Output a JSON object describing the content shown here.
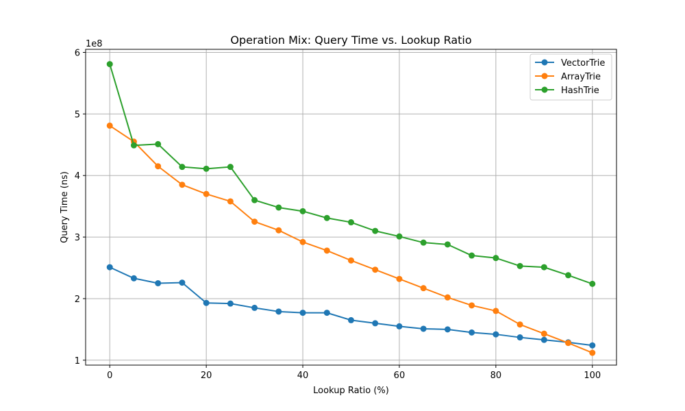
{
  "chart_data": {
    "type": "line",
    "title": "Operation Mix: Query Time vs. Lookup Ratio",
    "xlabel": "Lookup Ratio (%)",
    "ylabel": "Query Time (ns)",
    "y_offset_label": "1e8",
    "y_scale": 100000000,
    "xlim": [
      -5,
      105
    ],
    "ylim": [
      92000000,
      605000000
    ],
    "x_ticks": [
      0,
      20,
      40,
      60,
      80,
      100
    ],
    "y_ticks": [
      100000000,
      200000000,
      300000000,
      400000000,
      500000000,
      600000000
    ],
    "x_tick_labels": [
      "0",
      "20",
      "40",
      "60",
      "80",
      "100"
    ],
    "y_tick_labels": [
      "1",
      "2",
      "3",
      "4",
      "5",
      "6"
    ],
    "grid": true,
    "legend_position": "top-right",
    "x": [
      0,
      5,
      10,
      15,
      20,
      25,
      30,
      35,
      40,
      45,
      50,
      55,
      60,
      65,
      70,
      75,
      80,
      85,
      90,
      95,
      100
    ],
    "series": [
      {
        "name": "VectorTrie",
        "color": "#1f77b4",
        "values": [
          251000000,
          233000000,
          225000000,
          226000000,
          193000000,
          192000000,
          185000000,
          179000000,
          177000000,
          177000000,
          165000000,
          160000000,
          155000000,
          151000000,
          150000000,
          145000000,
          142000000,
          137000000,
          133000000,
          129000000,
          124000000
        ]
      },
      {
        "name": "ArrayTrie",
        "color": "#ff7f0e",
        "values": [
          481000000,
          455000000,
          415000000,
          385000000,
          370000000,
          358000000,
          325000000,
          311000000,
          292000000,
          278000000,
          262000000,
          247000000,
          232000000,
          217000000,
          202000000,
          189000000,
          180000000,
          158000000,
          143000000,
          128000000,
          112000000
        ]
      },
      {
        "name": "HashTrie",
        "color": "#2ca02c",
        "values": [
          581000000,
          449000000,
          451000000,
          414000000,
          411000000,
          414000000,
          360000000,
          348000000,
          342000000,
          331000000,
          324000000,
          310000000,
          301000000,
          291000000,
          288000000,
          270000000,
          266000000,
          253000000,
          251000000,
          238000000,
          224000000
        ]
      }
    ]
  }
}
